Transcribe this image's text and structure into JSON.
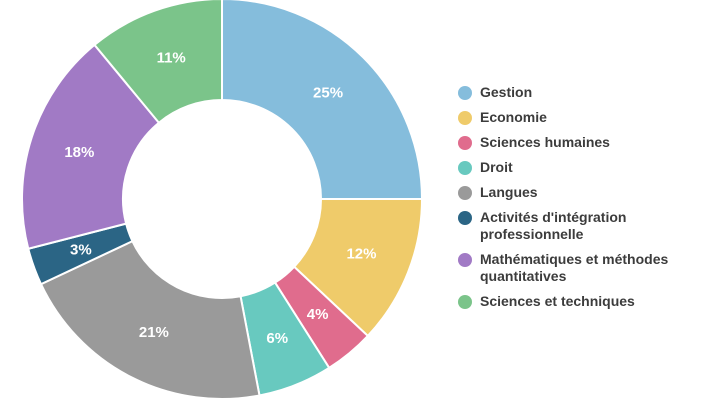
{
  "chart_data": {
    "type": "pie",
    "variant": "donut",
    "title": "",
    "legend_position": "right",
    "slices": [
      {
        "label": "Gestion",
        "value": 25,
        "value_label": "25%",
        "color": "#85bddc"
      },
      {
        "label": "Economie",
        "value": 12,
        "value_label": "12%",
        "color": "#efcb6a"
      },
      {
        "label": "Sciences humaines",
        "value": 4,
        "value_label": "4%",
        "color": "#e06c8d"
      },
      {
        "label": "Droit",
        "value": 6,
        "value_label": "6%",
        "color": "#68c9bf"
      },
      {
        "label": "Langues",
        "value": 21,
        "value_label": "21%",
        "color": "#9a9a9a"
      },
      {
        "label": "Activités d'intégration professionnelle",
        "value": 3,
        "value_label": "3%",
        "color": "#2b6585"
      },
      {
        "label": "Mathématiques et méthodes quantitatives",
        "value": 18,
        "value_label": "18%",
        "color": "#a17ac5"
      },
      {
        "label": "Sciences et techniques",
        "value": 11,
        "value_label": "11%",
        "color": "#7bc48a"
      }
    ]
  }
}
